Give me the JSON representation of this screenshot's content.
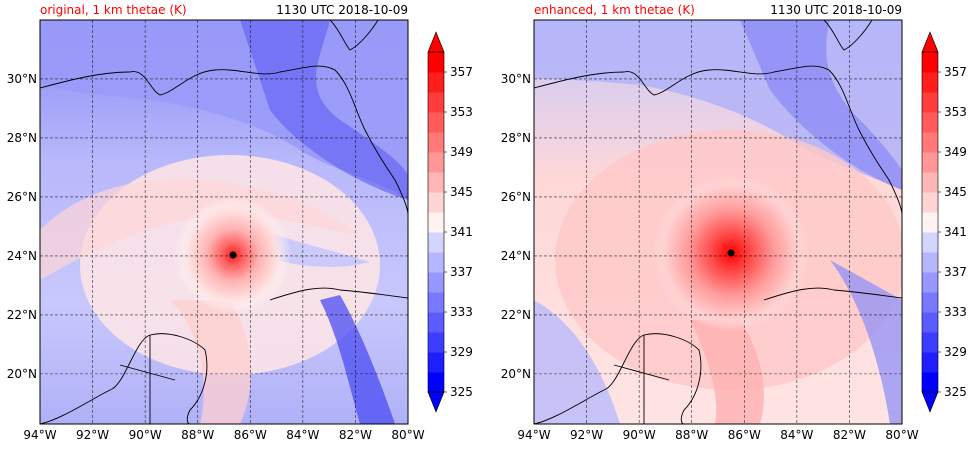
{
  "panels": [
    {
      "title_left": "original, 1 km thetae (K)",
      "title_right": "1130 UTC 2018-10-09",
      "field": "original"
    },
    {
      "title_left": "enhanced, 1 km thetae (K)",
      "title_right": "1130 UTC 2018-10-09",
      "field": "enhanced"
    }
  ],
  "lat_ticks": [
    "20°N",
    "22°N",
    "24°N",
    "26°N",
    "28°N",
    "30°N"
  ],
  "lon_ticks": [
    "94°W",
    "92°W",
    "90°W",
    "88°W",
    "86°W",
    "84°W",
    "82°W",
    "80°W"
  ],
  "colorbar": {
    "tick_labels": [
      "325",
      "329",
      "333",
      "337",
      "341",
      "345",
      "349",
      "353",
      "357"
    ],
    "levels": [
      325,
      327,
      329,
      331,
      333,
      335,
      337,
      339,
      341,
      343,
      345,
      347,
      349,
      351,
      353,
      355,
      357,
      359
    ]
  },
  "colors": {
    "title_left": "#ff0000",
    "title_right": "#000000",
    "cold_end": "#0000ff",
    "warm_end": "#ff0000",
    "neutral": "#ffffff",
    "storm_center_marker": "#000000",
    "gridlines": "#000000"
  },
  "storm_center": {
    "lat": 24.05,
    "lon_w": 86.7
  },
  "map_extent": {
    "lon_w": [
      94,
      80
    ],
    "lat_n": [
      18.3,
      32
    ]
  }
}
